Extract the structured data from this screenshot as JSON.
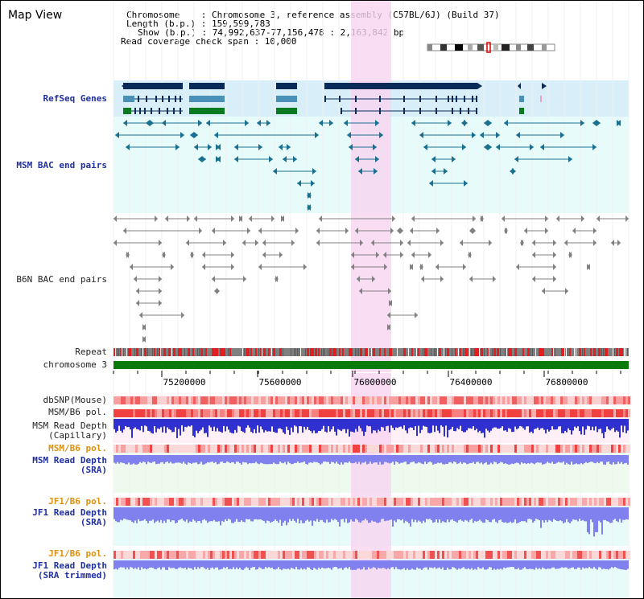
{
  "title": "Map View",
  "info": {
    "lines": [
      "Chromosome    : Chromosome 3, reference assembly (C57BL/6J) (Build 37)",
      "Length (b.p.) : 159,599,783",
      "Show (b.p.) : 74,992,637-77,156,478 : 2,163,842 bp",
      "Read coverage check span : 10,000"
    ]
  },
  "tracks": {
    "refseq": "RefSeq Genes",
    "msm_bac": "MSM BAC end pairs",
    "b6n_bac": "B6N BAC end pairs",
    "repeat": "Repeat",
    "chromosome": "chromosome 3",
    "dbsnp": "dbSNP(Mouse)",
    "msm_b6_pol_1": "MSM/B6 pol.",
    "msm_read_depth_cap_1": "MSM Read Depth",
    "msm_read_depth_cap_2": "(Capillary)",
    "msm_b6_pol_2": "MSM/B6 pol.",
    "msm_read_depth_sra_1": "MSM Read Depth",
    "msm_read_depth_sra_2": "(SRA)",
    "jf1_b6_pol_1": "JF1/B6 pol.",
    "jf1_read_depth_sra_1": "JF1 Read Depth",
    "jf1_read_depth_sra_2": "(SRA)",
    "jf1_b6_pol_2": "JF1/B6 pol.",
    "jf1_read_depth_tr_1": "JF1 Read Depth",
    "jf1_read_depth_tr_2": "(SRA trimmed)"
  },
  "axis": {
    "ticks": [
      "75200000",
      "75600000",
      "76000000",
      "76400000",
      "76800000"
    ]
  },
  "colors": {
    "refseq_bg": "#d8eef8",
    "bac_bg": "#e6fbfa",
    "highlight": "#f8d4f0",
    "gene_dark": "#0a2a5a",
    "gene_mid": "#4a90b8",
    "gene_green": "#0a7a20",
    "msm_bac": "#1a7090",
    "b6n_bac": "#808080",
    "chromosome": "#0a7a0a",
    "depth": "#3030d0",
    "depth_light": "#8080ee",
    "label_blue": "#2030a0",
    "label_orange": "#e09010"
  }
}
